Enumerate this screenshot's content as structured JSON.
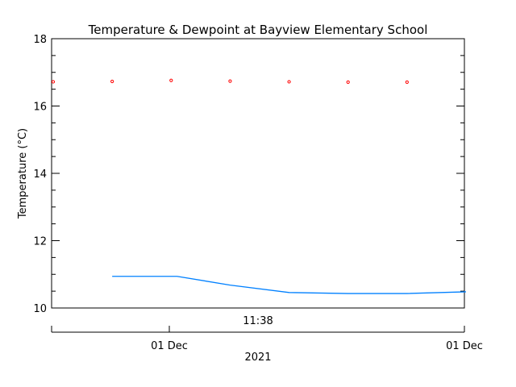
{
  "chart_data": {
    "type": "scatter",
    "title": "Temperature & Dewpoint at Bayview Elementary School",
    "ylabel": "Temperature (°C)",
    "ylim": [
      10,
      18
    ],
    "yticks": [
      10,
      12,
      14,
      16,
      18
    ],
    "time_label": "11:38",
    "date_ticks": [
      "01 Dec",
      "01 Dec"
    ],
    "year_label": "2021",
    "series": [
      {
        "values": [
          16.72,
          16.73,
          16.76,
          16.74,
          16.72,
          16.71,
          16.71
        ],
        "x_index": [
          0,
          1,
          2,
          3,
          4,
          5,
          6
        ],
        "style": "markers",
        "color": "#ff0000"
      },
      {
        "values": [
          10.94,
          10.94,
          10.94,
          10.68,
          10.46,
          10.43,
          10.43,
          10.48
        ],
        "x_index": [
          1,
          1.5,
          2.1,
          3.0,
          4.0,
          5.0,
          6.0,
          7.0
        ],
        "style": "line",
        "color": "#0080ff"
      }
    ]
  }
}
